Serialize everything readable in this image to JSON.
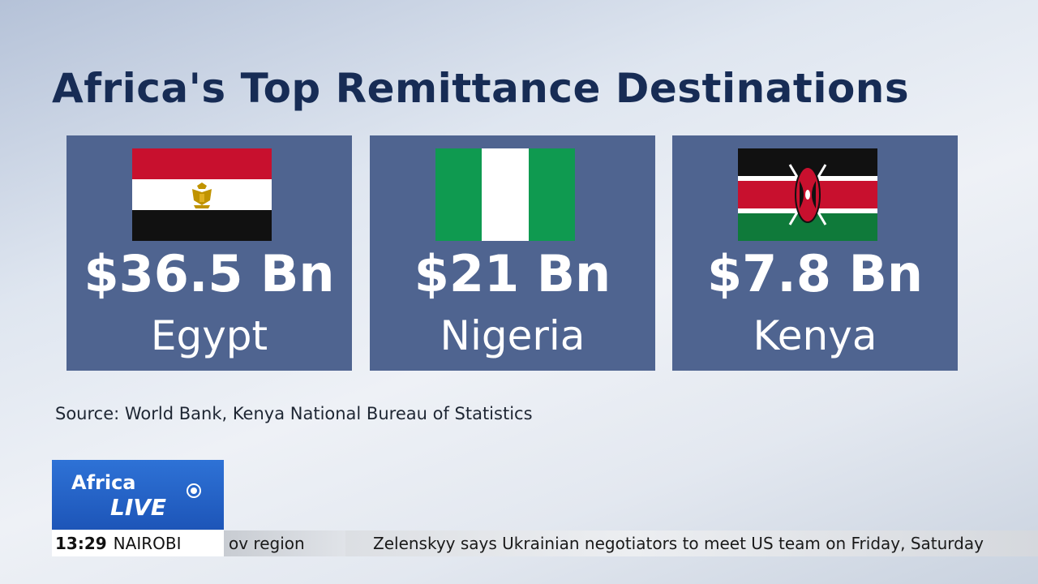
{
  "title": "Africa's Top Remittance Destinations",
  "cards": [
    {
      "amount": "$36.5 Bn",
      "country": "Egypt",
      "flag_icon": "egypt-flag-icon"
    },
    {
      "amount": "$21 Bn",
      "country": "Nigeria",
      "flag_icon": "nigeria-flag-icon"
    },
    {
      "amount": "$7.8 Bn",
      "country": "Kenya",
      "flag_icon": "kenya-flag-icon"
    }
  ],
  "source": "Source: World Bank, Kenya National Bureau of Statistics",
  "broadcast": {
    "logo_africa": "Africa",
    "logo_live": "LIVE",
    "time": "13:29",
    "city": "NAIROBI",
    "ticker_prev": "ov region",
    "ticker_text": "Zelenskyy says Ukrainian negotiators to meet US team on Friday, Saturday"
  },
  "colors": {
    "card": "#4f6490",
    "title": "#172c55",
    "logo": "#2e72d6"
  }
}
